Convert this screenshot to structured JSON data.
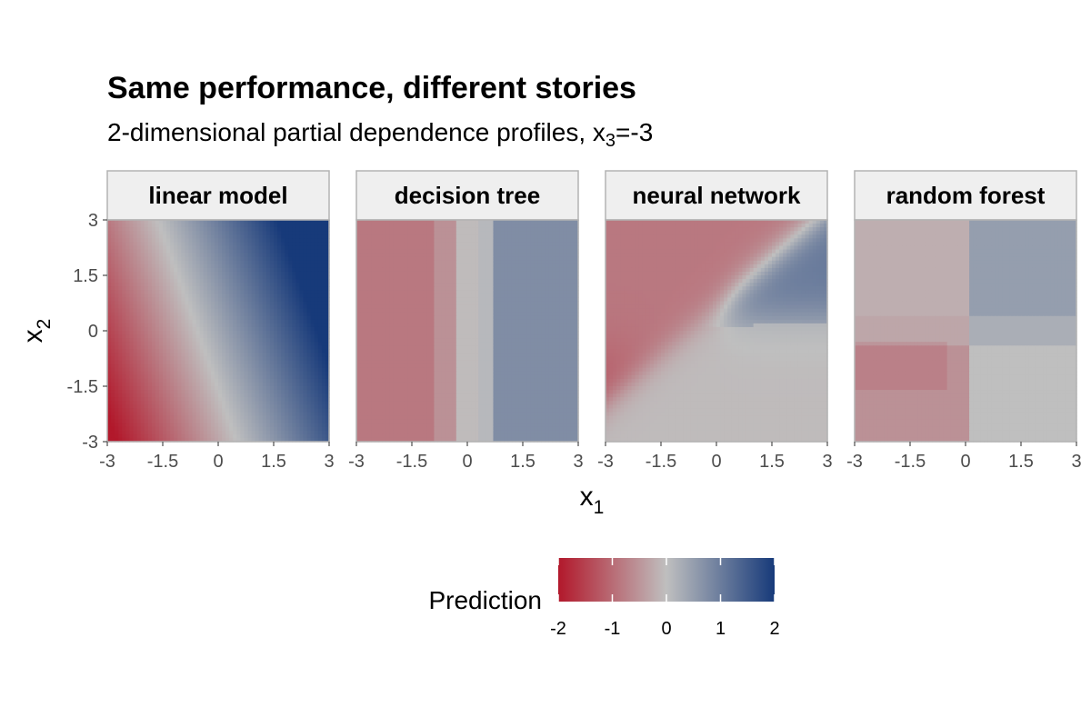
{
  "title": "Same performance, different stories",
  "subtitle": {
    "prefix": "2-dimensional partial dependence profiles, x",
    "sub": "3",
    "suffix": "=-3"
  },
  "colors": {
    "low": "#b2182b",
    "mid": "#bfbfbf",
    "high": "#173a7a",
    "strip_fill": "#efefef",
    "strip_border": "#b3b3b3"
  },
  "chart_data": {
    "type": "heatmap",
    "xlabel": {
      "main": "x",
      "sub": "1"
    },
    "ylabel": {
      "main": "x",
      "sub": "2"
    },
    "xlim": [
      -3,
      3
    ],
    "ylim": [
      -3,
      3
    ],
    "x_ticks": [
      -3,
      -1.5,
      0,
      1.5,
      3
    ],
    "y_ticks": [
      -3,
      -1.5,
      0,
      1.5,
      3
    ],
    "x_tick_labels": [
      "-3",
      "-1.5",
      "0",
      "1.5",
      "3"
    ],
    "y_tick_labels": [
      "-3",
      "-1.5",
      "0",
      "1.5",
      "3"
    ],
    "grid": false,
    "legend": {
      "title": "Prediction",
      "position": "bottom",
      "range": [
        -2,
        2
      ],
      "ticks": [
        -2,
        -1,
        0,
        1,
        2
      ],
      "tick_labels": [
        "-2",
        "-1",
        "0",
        "1",
        "2"
      ]
    },
    "panels": [
      {
        "id": "linear",
        "label": "linear model"
      },
      {
        "id": "tree",
        "label": "decision tree"
      },
      {
        "id": "nn",
        "label": "neural network"
      },
      {
        "id": "rf",
        "label": "random forest"
      }
    ]
  }
}
